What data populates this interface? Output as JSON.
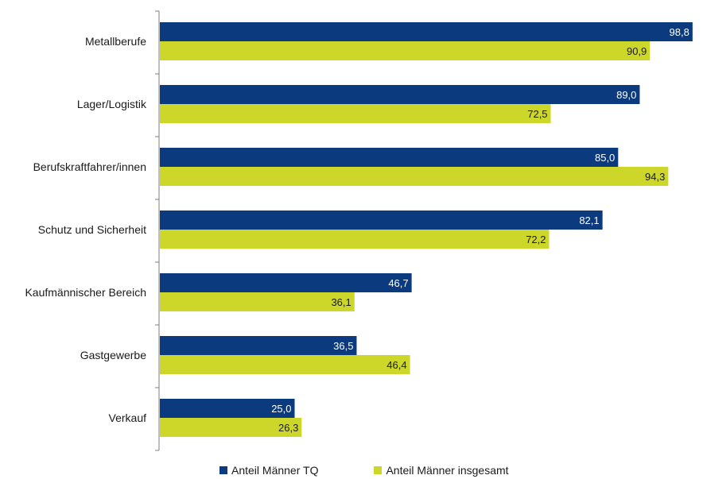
{
  "colors": {
    "series_tq": "#0b3b7e",
    "series_total": "#cdd72a",
    "axis": "#7f7f7f",
    "label_on_dark": "#ffffff",
    "label_on_light": "#1a1a1a"
  },
  "chart_data": {
    "type": "bar",
    "orientation": "horizontal",
    "categories": [
      "Metallberufe",
      "Lager/Logistik",
      "Berufskraftfahrer/innen",
      "Schutz und Sicherheit",
      "Kaufmännischer Bereich",
      "Gastgewerbe",
      "Verkauf"
    ],
    "series": [
      {
        "name": "Anteil Männer TQ",
        "values": [
          98.8,
          89.0,
          85.0,
          82.1,
          46.7,
          36.5,
          25.0
        ],
        "labels": [
          "98,8",
          "89,0",
          "85,0",
          "82,1",
          "46,7",
          "36,5",
          "25,0"
        ]
      },
      {
        "name": "Anteil Männer insgesamt",
        "values": [
          90.9,
          72.5,
          94.3,
          72.2,
          36.1,
          46.4,
          26.3
        ],
        "labels": [
          "90,9",
          "72,5",
          "94,3",
          "72,2",
          "36,1",
          "46,4",
          "26,3"
        ]
      }
    ],
    "xlim": [
      0,
      100
    ],
    "grid": false,
    "legend_position": "bottom",
    "title": "",
    "xlabel": "",
    "ylabel": ""
  },
  "legend": {
    "item1": "Anteil Männer TQ",
    "item2": "Anteil Männer insgesamt"
  }
}
